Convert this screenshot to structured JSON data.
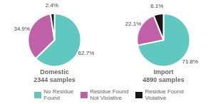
{
  "chart_data": [
    {
      "type": "pie",
      "title": "Domestic\n2344 samples",
      "categories": [
        "No Residue\nFound",
        "Residue Found\nNot Violative",
        "Residue Found\nViolative"
      ],
      "values": [
        62.7,
        34.9,
        2.4
      ],
      "value_labels": [
        "62.7%",
        "34.9%",
        "2.4%"
      ],
      "colors": [
        "#60c8c0",
        "#c060a8",
        "#181818"
      ],
      "data_labels": true,
      "legend": "bottom"
    },
    {
      "type": "pie",
      "title": "Import\n4890 samples",
      "categories": [
        "No Residue\nFound",
        "Residue Found\nNot Violative",
        "Residue Found\nViolative"
      ],
      "values": [
        71.8,
        22.1,
        6.1
      ],
      "value_labels": [
        "71.8%",
        "22.1%",
        "6.1%"
      ],
      "colors": [
        "#60c8c0",
        "#c060a8",
        "#181818"
      ],
      "data_labels": true,
      "legend": "bottom"
    }
  ]
}
